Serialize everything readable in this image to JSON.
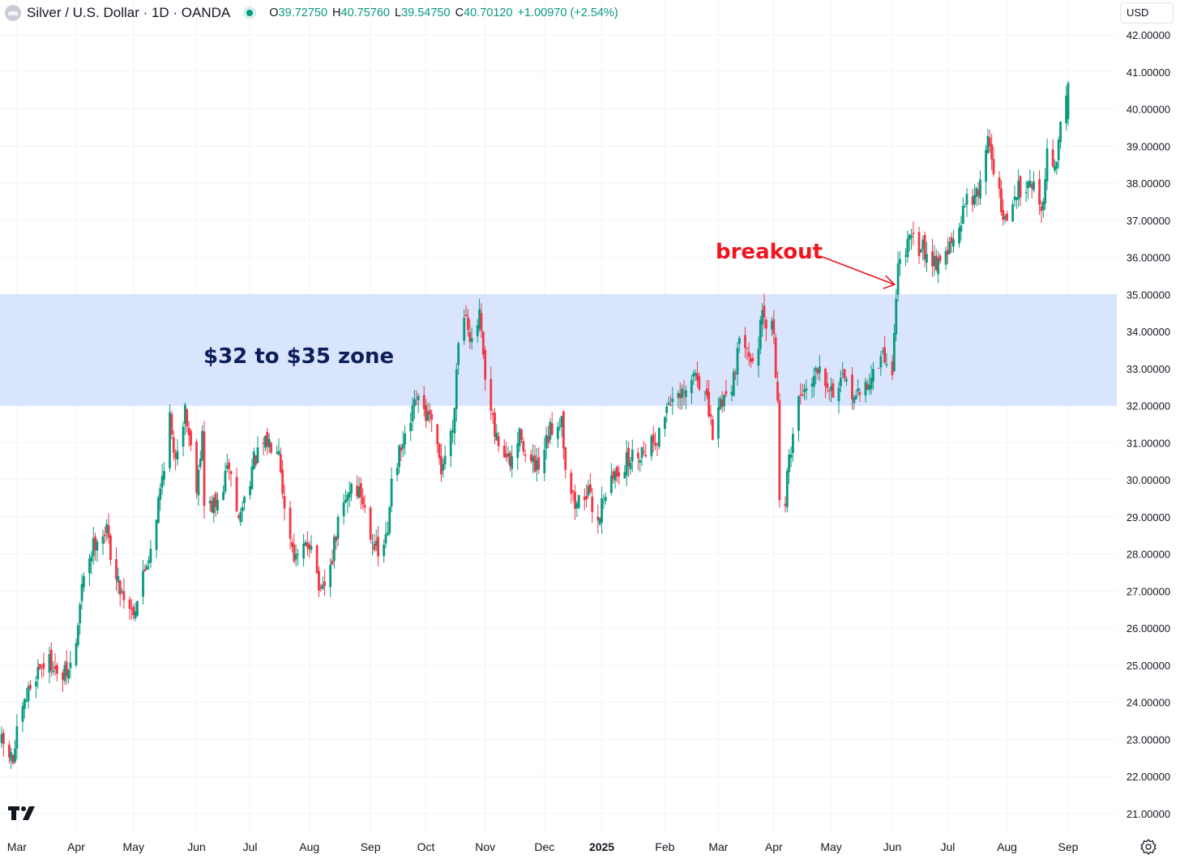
{
  "header": {
    "title": "Silver / U.S. Dollar · 1D · OANDA",
    "open_key": "O",
    "open": "39.72750",
    "high_key": "H",
    "high": "40.75760",
    "low_key": "L",
    "low": "39.54750",
    "close_key": "C",
    "close": "40.70120",
    "change": "+1.00970 (+2.54%)",
    "currency": "USD"
  },
  "icons": {
    "symbol": "silver-symbol-icon",
    "status": "live-dot-icon",
    "logo": "tradingview-logo-icon",
    "settings": "gear-icon"
  },
  "colors": {
    "up": "#089981",
    "down": "#f23645",
    "zone": "#d4e2fc",
    "annotation": "#f0141e",
    "zone_text": "#0d1e5a",
    "grid": "#f0f3fa"
  },
  "chart_data": {
    "type": "candlestick",
    "title": "Silver / U.S. Dollar · 1D · OANDA",
    "x_axis_labels": [
      "Mar",
      "Apr",
      "May",
      "Jun",
      "Jul",
      "Aug",
      "Sep",
      "Oct",
      "Nov",
      "Dec",
      "2025",
      "Feb",
      "Mar",
      "Apr",
      "May",
      "Jun",
      "Jul",
      "Aug",
      "Sep"
    ],
    "y_axis_labels": [
      "42.00000",
      "41.00000",
      "40.00000",
      "39.00000",
      "38.00000",
      "37.00000",
      "36.00000",
      "35.00000",
      "34.00000",
      "33.00000",
      "32.00000",
      "31.00000",
      "30.00000",
      "29.00000",
      "28.00000",
      "27.00000",
      "26.00000",
      "25.00000",
      "24.00000",
      "23.00000",
      "22.00000",
      "21.00000"
    ],
    "ylim": [
      20.75,
      42.25
    ],
    "grid": true,
    "anchors": [
      [
        "2024-02-22",
        22.9
      ],
      [
        "2024-02-28",
        22.4
      ],
      [
        "2024-03-01",
        23.1
      ],
      [
        "2024-03-07",
        24.3
      ],
      [
        "2024-03-13",
        25.0
      ],
      [
        "2024-03-20",
        25.1
      ],
      [
        "2024-03-22",
        24.6
      ],
      [
        "2024-03-28",
        24.8
      ],
      [
        "2024-04-01",
        25.6
      ],
      [
        "2024-04-05",
        27.5
      ],
      [
        "2024-04-12",
        28.5
      ],
      [
        "2024-04-17",
        28.6
      ],
      [
        "2024-04-22",
        27.3
      ],
      [
        "2024-04-30",
        26.5
      ],
      [
        "2024-05-02",
        26.6
      ],
      [
        "2024-05-10",
        28.2
      ],
      [
        "2024-05-15",
        29.7
      ],
      [
        "2024-05-20",
        31.7
      ],
      [
        "2024-05-22",
        30.5
      ],
      [
        "2024-05-28",
        31.9
      ],
      [
        "2024-06-03",
        29.9
      ],
      [
        "2024-06-06",
        31.2
      ],
      [
        "2024-06-07",
        29.3
      ],
      [
        "2024-06-14",
        29.3
      ],
      [
        "2024-06-20",
        30.4
      ],
      [
        "2024-06-25",
        28.9
      ],
      [
        "2024-07-03",
        30.5
      ],
      [
        "2024-07-10",
        31.0
      ],
      [
        "2024-07-16",
        31.0
      ],
      [
        "2024-07-19",
        29.2
      ],
      [
        "2024-07-25",
        27.8
      ],
      [
        "2024-08-02",
        28.4
      ],
      [
        "2024-08-07",
        26.8
      ],
      [
        "2024-08-12",
        27.6
      ],
      [
        "2024-08-16",
        28.8
      ],
      [
        "2024-08-23",
        29.9
      ],
      [
        "2024-08-28",
        29.6
      ],
      [
        "2024-09-06",
        27.9
      ],
      [
        "2024-09-11",
        28.5
      ],
      [
        "2024-09-13",
        30.2
      ],
      [
        "2024-09-20",
        31.0
      ],
      [
        "2024-09-26",
        32.1
      ],
      [
        "2024-10-03",
        31.6
      ],
      [
        "2024-10-09",
        30.3
      ],
      [
        "2024-10-15",
        31.4
      ],
      [
        "2024-10-18",
        33.8
      ],
      [
        "2024-10-22",
        34.6
      ],
      [
        "2024-10-25",
        33.6
      ],
      [
        "2024-10-29",
        34.4
      ],
      [
        "2024-11-01",
        32.6
      ],
      [
        "2024-11-06",
        31.2
      ],
      [
        "2024-11-14",
        30.4
      ],
      [
        "2024-11-20",
        31.3
      ],
      [
        "2024-11-22",
        30.6
      ],
      [
        "2024-11-29",
        30.2
      ],
      [
        "2024-12-05",
        31.3
      ],
      [
        "2024-12-11",
        31.7
      ],
      [
        "2024-12-13",
        30.4
      ],
      [
        "2024-12-18",
        29.3
      ],
      [
        "2024-12-24",
        29.7
      ],
      [
        "2024-12-30",
        28.9
      ],
      [
        "2025-01-02",
        29.6
      ],
      [
        "2025-01-10",
        30.3
      ],
      [
        "2025-01-17",
        30.6
      ],
      [
        "2025-01-24",
        30.9
      ],
      [
        "2025-01-31",
        31.2
      ],
      [
        "2025-02-05",
        32.2
      ],
      [
        "2025-02-10",
        32.1
      ],
      [
        "2025-02-14",
        32.3
      ],
      [
        "2025-02-19",
        32.9
      ],
      [
        "2025-02-24",
        32.3
      ],
      [
        "2025-02-28",
        31.2
      ],
      [
        "2025-03-04",
        32.1
      ],
      [
        "2025-03-10",
        32.6
      ],
      [
        "2025-03-14",
        33.6
      ],
      [
        "2025-03-18",
        33.8
      ],
      [
        "2025-03-21",
        33.0
      ],
      [
        "2025-03-26",
        34.3
      ],
      [
        "2025-04-01",
        34.0
      ],
      [
        "2025-04-03",
        32.0
      ],
      [
        "2025-04-04",
        29.6
      ],
      [
        "2025-04-07",
        29.4
      ],
      [
        "2025-04-09",
        30.6
      ],
      [
        "2025-04-14",
        32.2
      ],
      [
        "2025-04-21",
        32.8
      ],
      [
        "2025-04-25",
        33.2
      ],
      [
        "2025-05-01",
        32.4
      ],
      [
        "2025-05-07",
        32.6
      ],
      [
        "2025-05-12",
        32.4
      ],
      [
        "2025-05-15",
        32.2
      ],
      [
        "2025-05-20",
        32.6
      ],
      [
        "2025-05-28",
        33.3
      ],
      [
        "2025-06-02",
        33.0
      ],
      [
        "2025-06-05",
        35.8
      ],
      [
        "2025-06-09",
        36.3
      ],
      [
        "2025-06-13",
        36.4
      ],
      [
        "2025-06-19",
        36.2
      ],
      [
        "2025-06-25",
        35.9
      ],
      [
        "2025-07-01",
        36.2
      ],
      [
        "2025-07-07",
        36.6
      ],
      [
        "2025-07-11",
        37.8
      ],
      [
        "2025-07-16",
        37.6
      ],
      [
        "2025-07-22",
        39.2
      ],
      [
        "2025-07-24",
        38.8
      ],
      [
        "2025-07-30",
        37.0
      ],
      [
        "2025-08-01",
        36.9
      ],
      [
        "2025-08-06",
        37.8
      ],
      [
        "2025-08-11",
        38.0
      ],
      [
        "2025-08-13",
        38.2
      ],
      [
        "2025-08-19",
        37.3
      ],
      [
        "2025-08-22",
        38.7
      ],
      [
        "2025-08-26",
        38.5
      ],
      [
        "2025-08-28",
        38.9
      ],
      [
        "2025-08-29",
        39.7
      ],
      [
        "2025-09-02",
        40.7
      ]
    ],
    "zone": {
      "from": 32,
      "to": 35,
      "label": "$32 to $35 zone"
    },
    "annotation": {
      "label": "breakout",
      "date": "2025-06-04",
      "price": 35.2
    }
  }
}
